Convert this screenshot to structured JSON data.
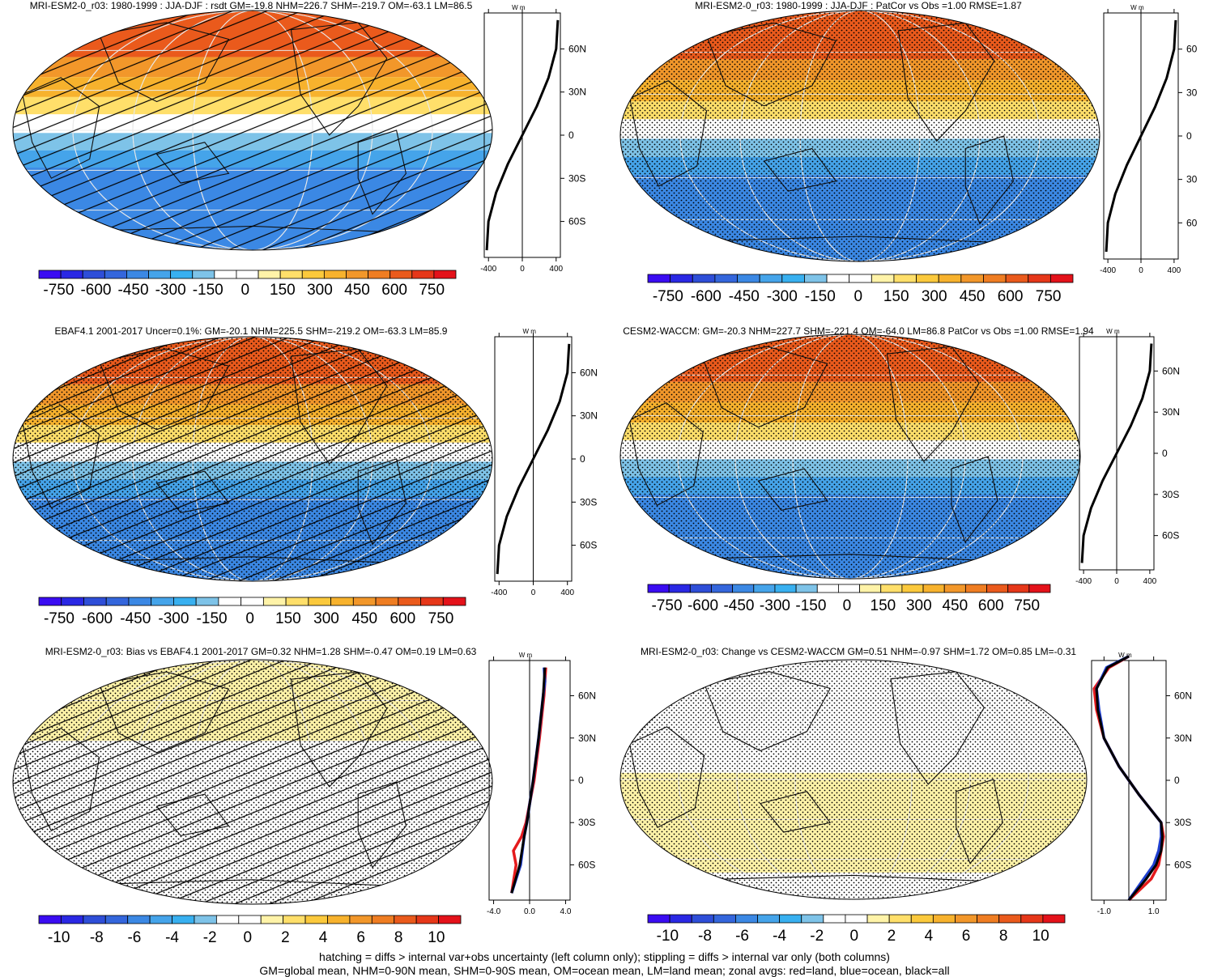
{
  "palette": [
    "#3a0cf2",
    "#2a28e4",
    "#2e4ed8",
    "#3466dc",
    "#3b88e4",
    "#45a4ea",
    "#38b0f0",
    "#7ec3e8",
    "#ffffff",
    "#ffffff",
    "#fff3a8",
    "#ffdf6a",
    "#fbc93c",
    "#f7b22d",
    "#f2972a",
    "#ef7d22",
    "#ea5a1c",
    "#e63719",
    "#e4121a"
  ],
  "chart_data": [
    {
      "type": "map+zonal",
      "title": "MRI-ESM2-0_r03: 1980-1999 : JJA-DJF : rsdt GM=-19.8 NHM=226.7 SHM=-219.7 OM=-63.1 LM=86.5",
      "map_bands": [
        {
          "lat_from": 90,
          "lat_to": 55,
          "value": 600
        },
        {
          "lat_from": 55,
          "lat_to": 40,
          "value": 450
        },
        {
          "lat_from": 40,
          "lat_to": 25,
          "value": 300
        },
        {
          "lat_from": 25,
          "lat_to": 12,
          "value": 150
        },
        {
          "lat_from": 12,
          "lat_to": -2,
          "value": 0
        },
        {
          "lat_from": -2,
          "lat_to": -15,
          "value": -150
        },
        {
          "lat_from": -15,
          "lat_to": -28,
          "value": -300
        },
        {
          "lat_from": -28,
          "lat_to": -90,
          "value": -450
        }
      ],
      "hatching": true,
      "stippling": false,
      "colorbar_labels": [
        "-750",
        "-600",
        "-450",
        "-300",
        "-150",
        "0",
        "150",
        "300",
        "450",
        "600",
        "750"
      ],
      "zonal": {
        "units": "W m-2",
        "xlim": [
          -450,
          450
        ],
        "xticks": [
          "-400",
          "0",
          "400"
        ],
        "yticks": [
          "60N",
          "30N",
          "0",
          "30S",
          "60S"
        ],
        "series": [
          {
            "color": "black",
            "lat": [
              -80,
              -60,
              -40,
              -20,
              0,
              20,
              40,
              60,
              80
            ],
            "values": [
              -420,
              -400,
              -310,
              -170,
              0,
              170,
              310,
              400,
              420
            ]
          }
        ]
      }
    },
    {
      "type": "map+zonal",
      "title": "MRI-ESM2-0_r03: 1980-1999 : JJA-DJF : PatCor vs Obs =1.00 RMSE=1.87",
      "map_bands": [
        {
          "lat_from": 90,
          "lat_to": 55,
          "value": 600
        },
        {
          "lat_from": 55,
          "lat_to": 40,
          "value": 450
        },
        {
          "lat_from": 40,
          "lat_to": 25,
          "value": 300
        },
        {
          "lat_from": 25,
          "lat_to": 12,
          "value": 150
        },
        {
          "lat_from": 12,
          "lat_to": -2,
          "value": 0
        },
        {
          "lat_from": -2,
          "lat_to": -15,
          "value": -150
        },
        {
          "lat_from": -15,
          "lat_to": -28,
          "value": -300
        },
        {
          "lat_from": -28,
          "lat_to": -90,
          "value": -450
        }
      ],
      "hatching": false,
      "stippling": true,
      "colorbar_labels": [
        "-750",
        "-600",
        "-450",
        "-300",
        "-150",
        "0",
        "150",
        "300",
        "450",
        "600",
        "750"
      ],
      "zonal": {
        "units": "W m-2",
        "xlim": [
          -450,
          450
        ],
        "xticks": [
          "-400",
          "0",
          "400"
        ],
        "yticks": [
          "60",
          "30",
          "0",
          "30",
          "60"
        ],
        "series": [
          {
            "color": "black",
            "lat": [
              -80,
              -60,
              -40,
              -20,
              0,
              20,
              40,
              60,
              80
            ],
            "values": [
              -420,
              -400,
              -310,
              -170,
              0,
              170,
              310,
              400,
              420
            ]
          }
        ]
      }
    },
    {
      "type": "map+zonal",
      "title": "EBAF4.1 2001-2017 Uncer=0.1%: GM=-20.1 NHM=225.5 SHM=-219.2 OM=-63.3 LM=85.9",
      "map_bands": [
        {
          "lat_from": 90,
          "lat_to": 55,
          "value": 600
        },
        {
          "lat_from": 55,
          "lat_to": 40,
          "value": 450
        },
        {
          "lat_from": 40,
          "lat_to": 25,
          "value": 300
        },
        {
          "lat_from": 25,
          "lat_to": 12,
          "value": 150
        },
        {
          "lat_from": 12,
          "lat_to": -2,
          "value": 0
        },
        {
          "lat_from": -2,
          "lat_to": -15,
          "value": -150
        },
        {
          "lat_from": -15,
          "lat_to": -28,
          "value": -300
        },
        {
          "lat_from": -28,
          "lat_to": -90,
          "value": -450
        }
      ],
      "hatching": true,
      "stippling": true,
      "colorbar_labels": [
        "-750",
        "-600",
        "-450",
        "-300",
        "-150",
        "0",
        "150",
        "300",
        "450",
        "600",
        "750"
      ],
      "zonal": {
        "units": "W m-2",
        "xlim": [
          -450,
          450
        ],
        "xticks": [
          "-400",
          "0",
          "400"
        ],
        "yticks": [
          "60N",
          "30N",
          "0",
          "30S",
          "60S"
        ],
        "series": [
          {
            "color": "black",
            "lat": [
              -80,
              -60,
              -40,
              -20,
              0,
              20,
              40,
              60,
              80
            ],
            "values": [
              -420,
              -400,
              -310,
              -170,
              0,
              170,
              310,
              400,
              420
            ]
          }
        ]
      }
    },
    {
      "type": "map+zonal",
      "title": "CESM2-WACCM: GM=-20.3 NHM=227.7 SHM=-221.4 OM=-64.0 LM=86.8 PatCor vs Obs =1.00 RMSE=1.94",
      "map_bands": [
        {
          "lat_from": 90,
          "lat_to": 55,
          "value": 600
        },
        {
          "lat_from": 55,
          "lat_to": 40,
          "value": 450
        },
        {
          "lat_from": 40,
          "lat_to": 25,
          "value": 300
        },
        {
          "lat_from": 25,
          "lat_to": 12,
          "value": 150
        },
        {
          "lat_from": 12,
          "lat_to": -2,
          "value": 0
        },
        {
          "lat_from": -2,
          "lat_to": -15,
          "value": -150
        },
        {
          "lat_from": -15,
          "lat_to": -28,
          "value": -300
        },
        {
          "lat_from": -28,
          "lat_to": -90,
          "value": -450
        }
      ],
      "hatching": false,
      "stippling": true,
      "colorbar_labels": [
        "-750",
        "-600",
        "-450",
        "-300",
        "-150",
        "0",
        "150",
        "300",
        "450",
        "600",
        "750"
      ],
      "zonal": {
        "units": "W m-2",
        "xlim": [
          -450,
          450
        ],
        "xticks": [
          "-400",
          "0",
          "400"
        ],
        "yticks": [
          "60N",
          "30N",
          "0",
          "30S",
          "60S"
        ],
        "series": [
          {
            "color": "black",
            "lat": [
              -80,
              -60,
              -40,
              -20,
              0,
              20,
              40,
              60,
              80
            ],
            "values": [
              -420,
              -400,
              -310,
              -170,
              0,
              170,
              310,
              400,
              420
            ]
          }
        ]
      }
    },
    {
      "type": "map+zonal",
      "title": "MRI-ESM2-0_r03: Bias vs EBAF4.1 2001-2017 GM=0.32 NHM=1.28 SHM=-0.47 OM=0.19 LM=0.63",
      "map_bands": [
        {
          "lat_from": 90,
          "lat_to": 30,
          "value": 1
        },
        {
          "lat_from": 30,
          "lat_to": -40,
          "value": 0
        },
        {
          "lat_from": -40,
          "lat_to": -90,
          "value": -1
        }
      ],
      "hatching": true,
      "stippling": true,
      "colorbar_labels": [
        "-10",
        "-8",
        "-6",
        "-4",
        "-2",
        "0",
        "2",
        "4",
        "6",
        "8",
        "10"
      ],
      "zonal": {
        "units": "W m-2",
        "xlim": [
          -4.5,
          4.5
        ],
        "xticks": [
          "-4.0",
          "0.0",
          "4.0"
        ],
        "yticks": [
          "60N",
          "30N",
          "0",
          "30S",
          "60S"
        ],
        "series": [
          {
            "color": "red",
            "lat": [
              -80,
              -60,
              -50,
              -40,
              -30,
              0,
              30,
              60,
              80
            ],
            "values": [
              -2,
              -1.5,
              -1.8,
              -0.9,
              -0.4,
              0.5,
              1.1,
              1.6,
              1.8
            ]
          },
          {
            "color": "blue",
            "lat": [
              -80,
              -60,
              -40,
              -30,
              0,
              30,
              60,
              70,
              80
            ],
            "values": [
              -2,
              -1,
              -0.6,
              -0.3,
              0.4,
              1.0,
              1.5,
              1.7,
              1.6
            ]
          },
          {
            "color": "black",
            "lat": [
              -80,
              -60,
              -40,
              -30,
              0,
              30,
              60,
              80
            ],
            "values": [
              -2,
              -1.1,
              -0.6,
              -0.3,
              0.4,
              1.0,
              1.5,
              1.7
            ]
          }
        ]
      }
    },
    {
      "type": "map+zonal",
      "title": "MRI-ESM2-0_r03: Change vs CESM2-WACCM GM=0.51 NHM=-0.97 SHM=1.72 OM=0.85 LM=-0.31",
      "map_bands": [
        {
          "lat_from": 90,
          "lat_to": 82,
          "value": 0
        },
        {
          "lat_from": 82,
          "lat_to": 35,
          "value": -1
        },
        {
          "lat_from": 35,
          "lat_to": 5,
          "value": 0
        },
        {
          "lat_from": 5,
          "lat_to": -70,
          "value": 1
        },
        {
          "lat_from": -70,
          "lat_to": -90,
          "value": 0
        }
      ],
      "hatching": false,
      "stippling": true,
      "colorbar_labels": [
        "-10",
        "-8",
        "-6",
        "-4",
        "-2",
        "0",
        "2",
        "4",
        "6",
        "8",
        "10"
      ],
      "zonal": {
        "units": "W m-2",
        "xlim": [
          -1.5,
          1.5
        ],
        "xticks": [
          "-1.0",
          "1.0"
        ],
        "yticks": [
          "60N",
          "30N",
          "0",
          "30S",
          "60S"
        ],
        "series": [
          {
            "color": "red",
            "lat": [
              -85,
              -70,
              -60,
              -50,
              -40,
              -30,
              -10,
              10,
              30,
              50,
              65,
              80,
              88
            ],
            "values": [
              0,
              0.9,
              1.2,
              1.3,
              1.4,
              1.3,
              0.4,
              -0.4,
              -1.0,
              -1.3,
              -1.4,
              -0.8,
              0
            ]
          },
          {
            "color": "blue",
            "lat": [
              -85,
              -70,
              -60,
              -50,
              -40,
              -30,
              -10,
              10,
              30,
              50,
              65,
              80,
              88
            ],
            "values": [
              0,
              0.6,
              1.0,
              1.2,
              1.3,
              1.3,
              0.4,
              -0.4,
              -1.0,
              -1.2,
              -1.3,
              -0.9,
              0
            ]
          },
          {
            "color": "black",
            "lat": [
              -85,
              -70,
              -60,
              -50,
              -40,
              -30,
              -10,
              10,
              30,
              50,
              65,
              80,
              88
            ],
            "values": [
              0,
              0.7,
              1.1,
              1.3,
              1.35,
              1.3,
              0.4,
              -0.4,
              -1.0,
              -1.25,
              -1.3,
              -0.85,
              0
            ]
          }
        ]
      }
    }
  ],
  "footer": {
    "line1": "hatching = diffs > internal var+obs uncertainty (left column only); stippling = diffs > internal var only (both columns)",
    "line2": "GM=global mean, NHM=0-90N mean, SHM=0-90S mean, OM=ocean mean, LM=land mean; zonal avgs: red=land, blue=ocean, black=all"
  }
}
